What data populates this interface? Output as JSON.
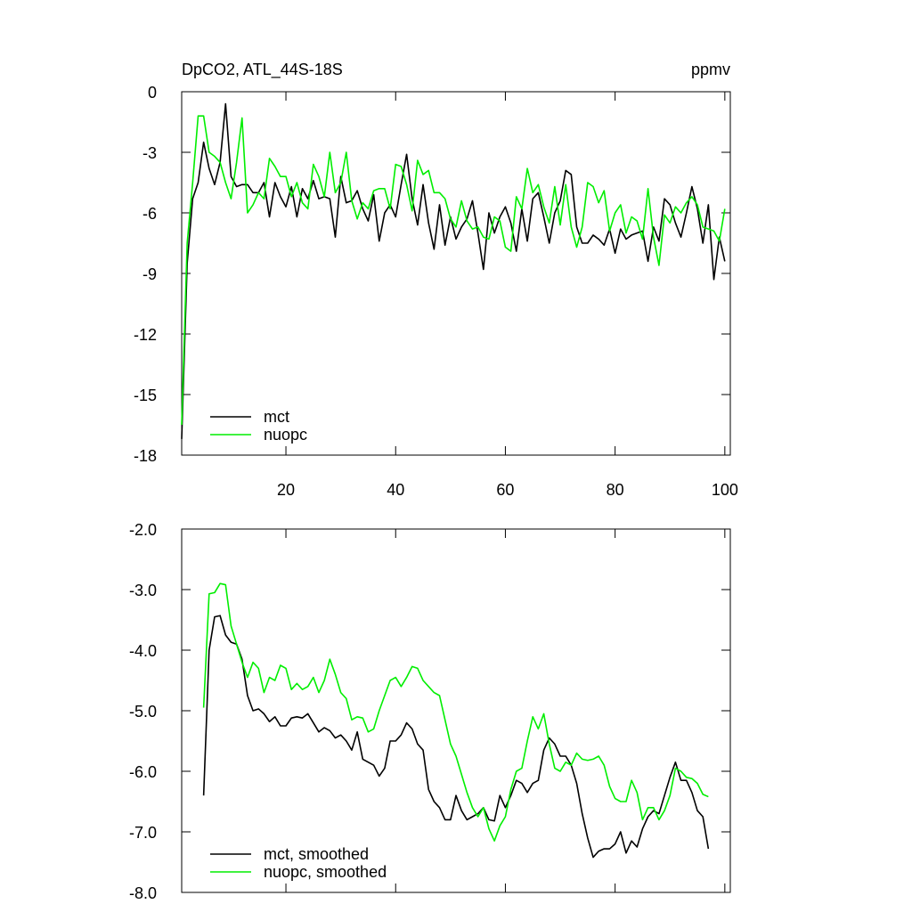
{
  "chart_data": [
    {
      "type": "line",
      "title": "DpCO2, ATL_44S-18S",
      "units": "ppmv",
      "x": [
        1,
        2,
        3,
        4,
        5,
        6,
        7,
        8,
        9,
        10,
        11,
        12,
        13,
        14,
        15,
        16,
        17,
        18,
        19,
        20,
        21,
        22,
        23,
        24,
        25,
        26,
        27,
        28,
        29,
        30,
        31,
        32,
        33,
        34,
        35,
        36,
        37,
        38,
        39,
        40,
        41,
        42,
        43,
        44,
        45,
        46,
        47,
        48,
        49,
        50,
        51,
        52,
        53,
        54,
        55,
        56,
        57,
        58,
        59,
        60,
        61,
        62,
        63,
        64,
        65,
        66,
        67,
        68,
        69,
        70,
        71,
        72,
        73,
        74,
        75,
        76,
        77,
        78,
        79,
        80,
        81,
        82,
        83,
        84,
        85,
        86,
        87,
        88,
        89,
        90,
        91,
        92,
        93,
        94,
        95,
        96,
        97,
        98,
        99,
        100
      ],
      "series": [
        {
          "name": "mct",
          "color": "#000000",
          "values": [
            -17.2,
            -8.5,
            -5.3,
            -4.5,
            -2.5,
            -3.8,
            -4.6,
            -3.5,
            -0.6,
            -4.2,
            -4.7,
            -4.6,
            -4.6,
            -5.0,
            -5.0,
            -4.5,
            -6.2,
            -4.5,
            -5.2,
            -5.7,
            -4.7,
            -6.2,
            -4.8,
            -5.3,
            -4.4,
            -5.3,
            -5.2,
            -5.3,
            -7.2,
            -4.2,
            -5.5,
            -5.4,
            -4.9,
            -5.8,
            -6.4,
            -5.1,
            -7.4,
            -6.0,
            -5.6,
            -6.2,
            -4.6,
            -3.1,
            -5.3,
            -6.6,
            -4.6,
            -6.5,
            -7.8,
            -5.6,
            -7.6,
            -6.2,
            -7.3,
            -6.7,
            -6.3,
            -5.4,
            -7.0,
            -8.8,
            -6.0,
            -7.0,
            -6.2,
            -5.7,
            -6.5,
            -7.9,
            -5.8,
            -7.4,
            -5.3,
            -5.0,
            -6.2,
            -7.5,
            -6.0,
            -5.4,
            -3.9,
            -4.1,
            -6.7,
            -7.5,
            -7.5,
            -7.1,
            -7.3,
            -7.6,
            -6.8,
            -8.0,
            -6.8,
            -7.3,
            -7.1,
            -7.0,
            -6.9,
            -8.4,
            -6.7,
            -7.4,
            -5.3,
            -5.6,
            -6.5,
            -7.2,
            -6.0,
            -4.7,
            -5.8,
            -7.5,
            -5.6,
            -9.3,
            -7.2,
            -8.4
          ]
        },
        {
          "name": "nuopc",
          "color": "#00ee00",
          "values": [
            -16.5,
            -7.5,
            -4.5,
            -1.2,
            -1.2,
            -3.0,
            -3.2,
            -3.5,
            -4.5,
            -5.3,
            -3.5,
            -1.3,
            -6.0,
            -5.6,
            -5.0,
            -5.3,
            -3.3,
            -3.7,
            -4.2,
            -4.2,
            -5.2,
            -4.5,
            -5.5,
            -5.8,
            -3.6,
            -4.2,
            -5.2,
            -3.0,
            -5.0,
            -4.5,
            -3.0,
            -5.4,
            -6.3,
            -5.5,
            -5.8,
            -4.9,
            -4.8,
            -4.8,
            -5.8,
            -3.6,
            -3.7,
            -4.6,
            -5.9,
            -3.4,
            -4.1,
            -3.9,
            -5.0,
            -5.0,
            -5.3,
            -6.3,
            -6.7,
            -5.4,
            -6.4,
            -6.8,
            -6.7,
            -7.2,
            -7.3,
            -6.2,
            -6.4,
            -7.7,
            -7.9,
            -5.2,
            -5.8,
            -3.8,
            -5.0,
            -4.6,
            -5.7,
            -6.5,
            -4.7,
            -6.6,
            -4.6,
            -6.7,
            -7.7,
            -6.7,
            -4.5,
            -4.7,
            -5.5,
            -4.9,
            -6.9,
            -6.0,
            -5.6,
            -7.0,
            -6.2,
            -6.4,
            -7.3,
            -4.8,
            -7.2,
            -8.6,
            -6.1,
            -6.5,
            -5.7,
            -6.0,
            -5.5,
            -5.2,
            -5.6,
            -6.7,
            -6.8,
            -6.9,
            -7.4,
            -5.8
          ]
        }
      ],
      "xlim": [
        1,
        101
      ],
      "xticks": [
        20,
        40,
        60,
        80,
        100
      ],
      "xtick_labels": true,
      "ylim": [
        -18,
        0
      ],
      "yticks": [
        0,
        -3,
        -6,
        -9,
        -12,
        -15,
        -18
      ]
    },
    {
      "type": "line",
      "x": [
        5,
        6,
        7,
        8,
        9,
        10,
        11,
        12,
        13,
        14,
        15,
        16,
        17,
        18,
        19,
        20,
        21,
        22,
        23,
        24,
        25,
        26,
        27,
        28,
        29,
        30,
        31,
        32,
        33,
        34,
        35,
        36,
        37,
        38,
        39,
        40,
        41,
        42,
        43,
        44,
        45,
        46,
        47,
        48,
        49,
        50,
        51,
        52,
        53,
        54,
        55,
        56,
        57,
        58,
        59,
        60,
        61,
        62,
        63,
        64,
        65,
        66,
        67,
        68,
        69,
        70,
        71,
        72,
        73,
        74,
        75,
        76,
        77,
        78,
        79,
        80,
        81,
        82,
        83,
        84,
        85,
        86,
        87,
        88,
        89,
        90,
        91,
        92,
        93,
        94,
        95,
        96,
        97
      ],
      "series": [
        {
          "name": "mct, smoothed",
          "color": "#000000",
          "values": [
            -6.4,
            -4.0,
            -3.45,
            -3.43,
            -3.75,
            -3.87,
            -3.9,
            -4.15,
            -4.75,
            -5.0,
            -4.97,
            -5.05,
            -5.18,
            -5.1,
            -5.25,
            -5.25,
            -5.12,
            -5.1,
            -5.12,
            -5.05,
            -5.2,
            -5.35,
            -5.28,
            -5.33,
            -5.45,
            -5.4,
            -5.5,
            -5.65,
            -5.35,
            -5.8,
            -5.85,
            -5.9,
            -6.08,
            -5.95,
            -5.5,
            -5.5,
            -5.4,
            -5.2,
            -5.3,
            -5.55,
            -5.65,
            -6.3,
            -6.5,
            -6.6,
            -6.8,
            -6.8,
            -6.4,
            -6.65,
            -6.8,
            -6.75,
            -6.7,
            -6.6,
            -6.8,
            -6.82,
            -6.4,
            -6.6,
            -6.4,
            -6.15,
            -6.2,
            -6.35,
            -6.2,
            -6.15,
            -5.65,
            -5.45,
            -5.55,
            -5.75,
            -5.75,
            -5.9,
            -6.2,
            -6.7,
            -7.1,
            -7.42,
            -7.32,
            -7.28,
            -7.28,
            -7.2,
            -7.0,
            -7.35,
            -7.15,
            -7.25,
            -6.95,
            -6.75,
            -6.65,
            -6.7,
            -6.4,
            -6.1,
            -5.85,
            -6.15,
            -6.15,
            -6.35,
            -6.65,
            -6.75,
            -7.28
          ]
        },
        {
          "name": "nuopc, smoothed",
          "color": "#00ee00",
          "values": [
            -4.95,
            -3.07,
            -3.05,
            -2.9,
            -2.92,
            -3.6,
            -3.9,
            -4.2,
            -4.45,
            -4.2,
            -4.3,
            -4.7,
            -4.45,
            -4.5,
            -4.25,
            -4.3,
            -4.65,
            -4.55,
            -4.65,
            -4.6,
            -4.45,
            -4.7,
            -4.5,
            -4.15,
            -4.4,
            -4.7,
            -4.8,
            -5.15,
            -5.1,
            -5.12,
            -5.35,
            -5.3,
            -5.0,
            -4.75,
            -4.5,
            -4.45,
            -4.6,
            -4.45,
            -4.27,
            -4.3,
            -4.5,
            -4.6,
            -4.7,
            -4.75,
            -5.15,
            -5.55,
            -5.75,
            -6.05,
            -6.35,
            -6.6,
            -6.75,
            -6.6,
            -6.95,
            -7.15,
            -6.9,
            -6.75,
            -6.3,
            -6.0,
            -5.95,
            -5.5,
            -5.1,
            -5.3,
            -5.05,
            -5.55,
            -5.95,
            -6.0,
            -5.85,
            -5.9,
            -5.7,
            -5.8,
            -5.82,
            -5.8,
            -5.75,
            -5.9,
            -6.25,
            -6.45,
            -6.5,
            -6.5,
            -6.15,
            -6.35,
            -6.8,
            -6.6,
            -6.6,
            -6.8,
            -6.65,
            -6.4,
            -5.95,
            -6.0,
            -6.1,
            -6.12,
            -6.2,
            -6.38,
            -6.42
          ]
        }
      ],
      "xlim": [
        1,
        101
      ],
      "xticks": [
        20,
        40,
        60,
        80,
        100
      ],
      "xtick_labels": false,
      "ylim": [
        -8,
        -2
      ],
      "yticks": [
        {
          "value": -2,
          "label": "-2.0"
        },
        {
          "value": -3,
          "label": "-3.0"
        },
        {
          "value": -4,
          "label": "-4.0"
        },
        {
          "value": -5,
          "label": "-5.0"
        },
        {
          "value": -6,
          "label": "-6.0"
        },
        {
          "value": -7,
          "label": "-7.0"
        },
        {
          "value": -8,
          "label": "-8.0"
        }
      ]
    }
  ]
}
